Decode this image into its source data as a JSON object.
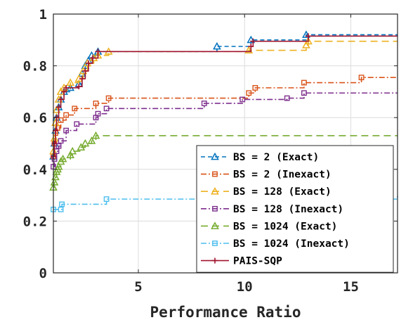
{
  "chart_data": {
    "type": "line",
    "title": "",
    "xlabel": "Performance Ratio",
    "ylabel": "",
    "xlim": [
      1,
      17.2
    ],
    "ylim": [
      0,
      1
    ],
    "xticks": [
      5,
      10,
      15
    ],
    "yticks": [
      0,
      0.2,
      0.4,
      0.6,
      0.8,
      1
    ],
    "ytick_labels": [
      "0",
      "0.2",
      "0.4",
      "0.6",
      "0.8",
      "1"
    ],
    "grid": true,
    "legend_position": "bottom-right",
    "series": [
      {
        "name": "BS = 2 (Exact)",
        "color": "#0072BD",
        "dash": "6,4",
        "marker": "triangle",
        "points": [
          [
            1.0,
            0.45
          ],
          [
            1.05,
            0.5
          ],
          [
            1.1,
            0.55
          ],
          [
            1.15,
            0.6
          ],
          [
            1.25,
            0.64
          ],
          [
            1.35,
            0.67
          ],
          [
            1.5,
            0.7
          ],
          [
            1.8,
            0.715
          ],
          [
            2.2,
            0.73
          ],
          [
            2.35,
            0.77
          ],
          [
            2.5,
            0.8
          ],
          [
            2.65,
            0.82
          ],
          [
            2.8,
            0.84
          ],
          [
            3.1,
            0.855
          ],
          [
            8.7,
            0.875
          ],
          [
            10.3,
            0.9
          ],
          [
            12.9,
            0.92
          ],
          [
            17.2,
            0.92
          ]
        ]
      },
      {
        "name": "BS = 2 (Inexact)",
        "color": "#D95319",
        "dash": "8,3,2,3",
        "marker": "square",
        "points": [
          [
            1.0,
            0.45
          ],
          [
            1.05,
            0.5
          ],
          [
            1.1,
            0.54
          ],
          [
            1.2,
            0.56
          ],
          [
            1.35,
            0.59
          ],
          [
            1.6,
            0.61
          ],
          [
            2.0,
            0.635
          ],
          [
            3.0,
            0.655
          ],
          [
            3.6,
            0.675
          ],
          [
            10.2,
            0.695
          ],
          [
            10.5,
            0.715
          ],
          [
            12.8,
            0.735
          ],
          [
            15.5,
            0.755
          ],
          [
            17.2,
            0.755
          ]
        ]
      },
      {
        "name": "BS = 128 (Exact)",
        "color": "#EDB120",
        "dash": "10,6",
        "marker": "triangle",
        "points": [
          [
            1.0,
            0.47
          ],
          [
            1.05,
            0.52
          ],
          [
            1.1,
            0.58
          ],
          [
            1.15,
            0.63
          ],
          [
            1.25,
            0.67
          ],
          [
            1.35,
            0.7
          ],
          [
            1.5,
            0.715
          ],
          [
            1.8,
            0.735
          ],
          [
            2.2,
            0.75
          ],
          [
            2.4,
            0.78
          ],
          [
            2.6,
            0.81
          ],
          [
            2.9,
            0.83
          ],
          [
            3.1,
            0.84
          ],
          [
            3.6,
            0.855
          ],
          [
            10.2,
            0.86
          ],
          [
            12.9,
            0.88
          ],
          [
            13.0,
            0.895
          ],
          [
            17.2,
            0.895
          ]
        ]
      },
      {
        "name": "BS = 128 (Inexact)",
        "color": "#7E2F8E",
        "dash": "8,3,2,3",
        "marker": "square",
        "points": [
          [
            1.0,
            0.41
          ],
          [
            1.05,
            0.44
          ],
          [
            1.15,
            0.47
          ],
          [
            1.25,
            0.49
          ],
          [
            1.35,
            0.51
          ],
          [
            1.6,
            0.55
          ],
          [
            2.1,
            0.575
          ],
          [
            3.0,
            0.6
          ],
          [
            3.1,
            0.615
          ],
          [
            3.5,
            0.635
          ],
          [
            8.1,
            0.655
          ],
          [
            9.9,
            0.67
          ],
          [
            12.0,
            0.675
          ],
          [
            12.8,
            0.695
          ],
          [
            17.2,
            0.695
          ]
        ]
      },
      {
        "name": "BS = 1024 (Exact)",
        "color": "#77AC30",
        "dash": "10,6",
        "marker": "triangle",
        "points": [
          [
            1.0,
            0.33
          ],
          [
            1.05,
            0.35
          ],
          [
            1.1,
            0.37
          ],
          [
            1.15,
            0.39
          ],
          [
            1.2,
            0.4
          ],
          [
            1.25,
            0.41
          ],
          [
            1.35,
            0.43
          ],
          [
            1.45,
            0.44
          ],
          [
            1.8,
            0.455
          ],
          [
            1.9,
            0.47
          ],
          [
            2.3,
            0.485
          ],
          [
            2.5,
            0.5
          ],
          [
            2.8,
            0.51
          ],
          [
            3.0,
            0.53
          ],
          [
            17.2,
            0.53
          ]
        ]
      },
      {
        "name": "BS = 1024 (Inexact)",
        "color": "#4DBEEE",
        "dash": "8,3,2,3",
        "marker": "square",
        "points": [
          [
            1.0,
            0.245
          ],
          [
            1.35,
            0.245
          ],
          [
            1.4,
            0.265
          ],
          [
            3.5,
            0.285
          ],
          [
            17.2,
            0.305
          ]
        ]
      },
      {
        "name": "PAIS-SQP",
        "color": "#A2142F",
        "dash": "",
        "marker": "plus",
        "points": [
          [
            1.0,
            0.45
          ],
          [
            1.05,
            0.5
          ],
          [
            1.1,
            0.55
          ],
          [
            1.15,
            0.6
          ],
          [
            1.25,
            0.64
          ],
          [
            1.35,
            0.67
          ],
          [
            1.5,
            0.7
          ],
          [
            1.6,
            0.715
          ],
          [
            2.2,
            0.72
          ],
          [
            2.35,
            0.75
          ],
          [
            2.5,
            0.78
          ],
          [
            2.65,
            0.81
          ],
          [
            2.85,
            0.83
          ],
          [
            3.1,
            0.855
          ],
          [
            10.3,
            0.875
          ],
          [
            10.4,
            0.895
          ],
          [
            13.0,
            0.915
          ],
          [
            17.2,
            0.915
          ]
        ]
      }
    ]
  }
}
